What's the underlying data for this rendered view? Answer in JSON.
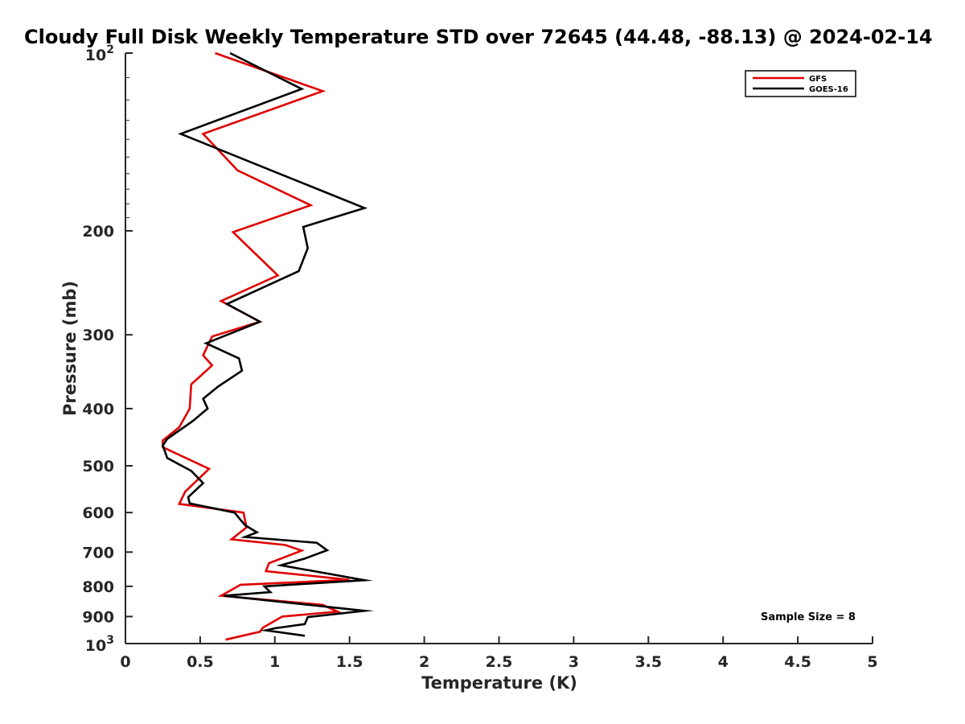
{
  "chart_data": {
    "type": "line",
    "title": "Cloudy Full Disk Weekly Temperature STD over 72645 (44.48, -88.13) @ 2024-02-14",
    "xlabel": "Temperature (K)",
    "ylabel": "Pressure (mb)",
    "xlim": [
      0,
      5
    ],
    "ylim": [
      100,
      1000
    ],
    "y_scale": "log",
    "y_reversed": true,
    "x_ticks": [
      "0",
      "0.5",
      "1",
      "1.5",
      "2",
      "2.5",
      "3",
      "3.5",
      "4",
      "4.5",
      "5"
    ],
    "y_ticks": [
      {
        "value": 200,
        "label": "200"
      },
      {
        "value": 300,
        "label": "300"
      },
      {
        "value": 400,
        "label": "400"
      },
      {
        "value": 500,
        "label": "500"
      },
      {
        "value": 600,
        "label": "600"
      },
      {
        "value": 700,
        "label": "700"
      },
      {
        "value": 800,
        "label": "800"
      },
      {
        "value": 900,
        "label": "900"
      }
    ],
    "y_tick_powers": [
      {
        "value": 100,
        "base": "10",
        "exp": "2"
      },
      {
        "value": 1000,
        "base": "10",
        "exp": "3"
      }
    ],
    "grid": false,
    "legend_position": "top-right",
    "annotation": "Sample Size = 8",
    "series": [
      {
        "name": "GFS",
        "color": "#e00000",
        "points": [
          [
            0.6,
            100
          ],
          [
            1.32,
            116
          ],
          [
            0.52,
            137
          ],
          [
            0.75,
            158
          ],
          [
            1.24,
            181
          ],
          [
            0.72,
            201
          ],
          [
            1.02,
            238
          ],
          [
            0.64,
            263
          ],
          [
            0.9,
            285
          ],
          [
            0.58,
            302
          ],
          [
            0.52,
            325
          ],
          [
            0.58,
            338
          ],
          [
            0.44,
            364
          ],
          [
            0.43,
            400
          ],
          [
            0.36,
            430
          ],
          [
            0.25,
            453
          ],
          [
            0.25,
            465
          ],
          [
            0.56,
            506
          ],
          [
            0.4,
            553
          ],
          [
            0.36,
            580
          ],
          [
            0.79,
            600
          ],
          [
            0.81,
            636
          ],
          [
            0.71,
            666
          ],
          [
            1.07,
            681
          ],
          [
            1.18,
            696
          ],
          [
            0.96,
            731
          ],
          [
            0.94,
            754
          ],
          [
            1.5,
            780
          ],
          [
            0.77,
            795
          ],
          [
            0.64,
            830
          ],
          [
            1.32,
            860
          ],
          [
            1.42,
            883
          ],
          [
            1.05,
            900
          ],
          [
            0.92,
            940
          ],
          [
            0.9,
            955
          ],
          [
            0.67,
            985
          ]
        ]
      },
      {
        "name": "GOES-16",
        "color": "#000000",
        "points": [
          [
            0.7,
            100
          ],
          [
            1.18,
            115
          ],
          [
            0.37,
            137
          ],
          [
            1.6,
            183
          ],
          [
            1.19,
            197
          ],
          [
            1.22,
            214
          ],
          [
            1.16,
            234
          ],
          [
            0.68,
            266
          ],
          [
            0.9,
            285
          ],
          [
            0.54,
            310
          ],
          [
            0.76,
            329
          ],
          [
            0.78,
            345
          ],
          [
            0.62,
            367
          ],
          [
            0.52,
            385
          ],
          [
            0.55,
            400
          ],
          [
            0.45,
            420
          ],
          [
            0.28,
            450
          ],
          [
            0.25,
            462
          ],
          [
            0.28,
            485
          ],
          [
            0.44,
            510
          ],
          [
            0.52,
            535
          ],
          [
            0.42,
            565
          ],
          [
            0.43,
            579
          ],
          [
            0.73,
            600
          ],
          [
            0.8,
            630
          ],
          [
            0.88,
            648
          ],
          [
            0.8,
            660
          ],
          [
            1.28,
            675
          ],
          [
            1.35,
            695
          ],
          [
            1.2,
            718
          ],
          [
            1.04,
            737
          ],
          [
            1.6,
            781
          ],
          [
            0.93,
            800
          ],
          [
            0.97,
            818
          ],
          [
            0.66,
            830
          ],
          [
            1.6,
            880
          ],
          [
            1.22,
            902
          ],
          [
            1.2,
            927
          ],
          [
            1.0,
            942
          ],
          [
            0.94,
            950
          ],
          [
            1.2,
            970
          ]
        ]
      }
    ]
  }
}
